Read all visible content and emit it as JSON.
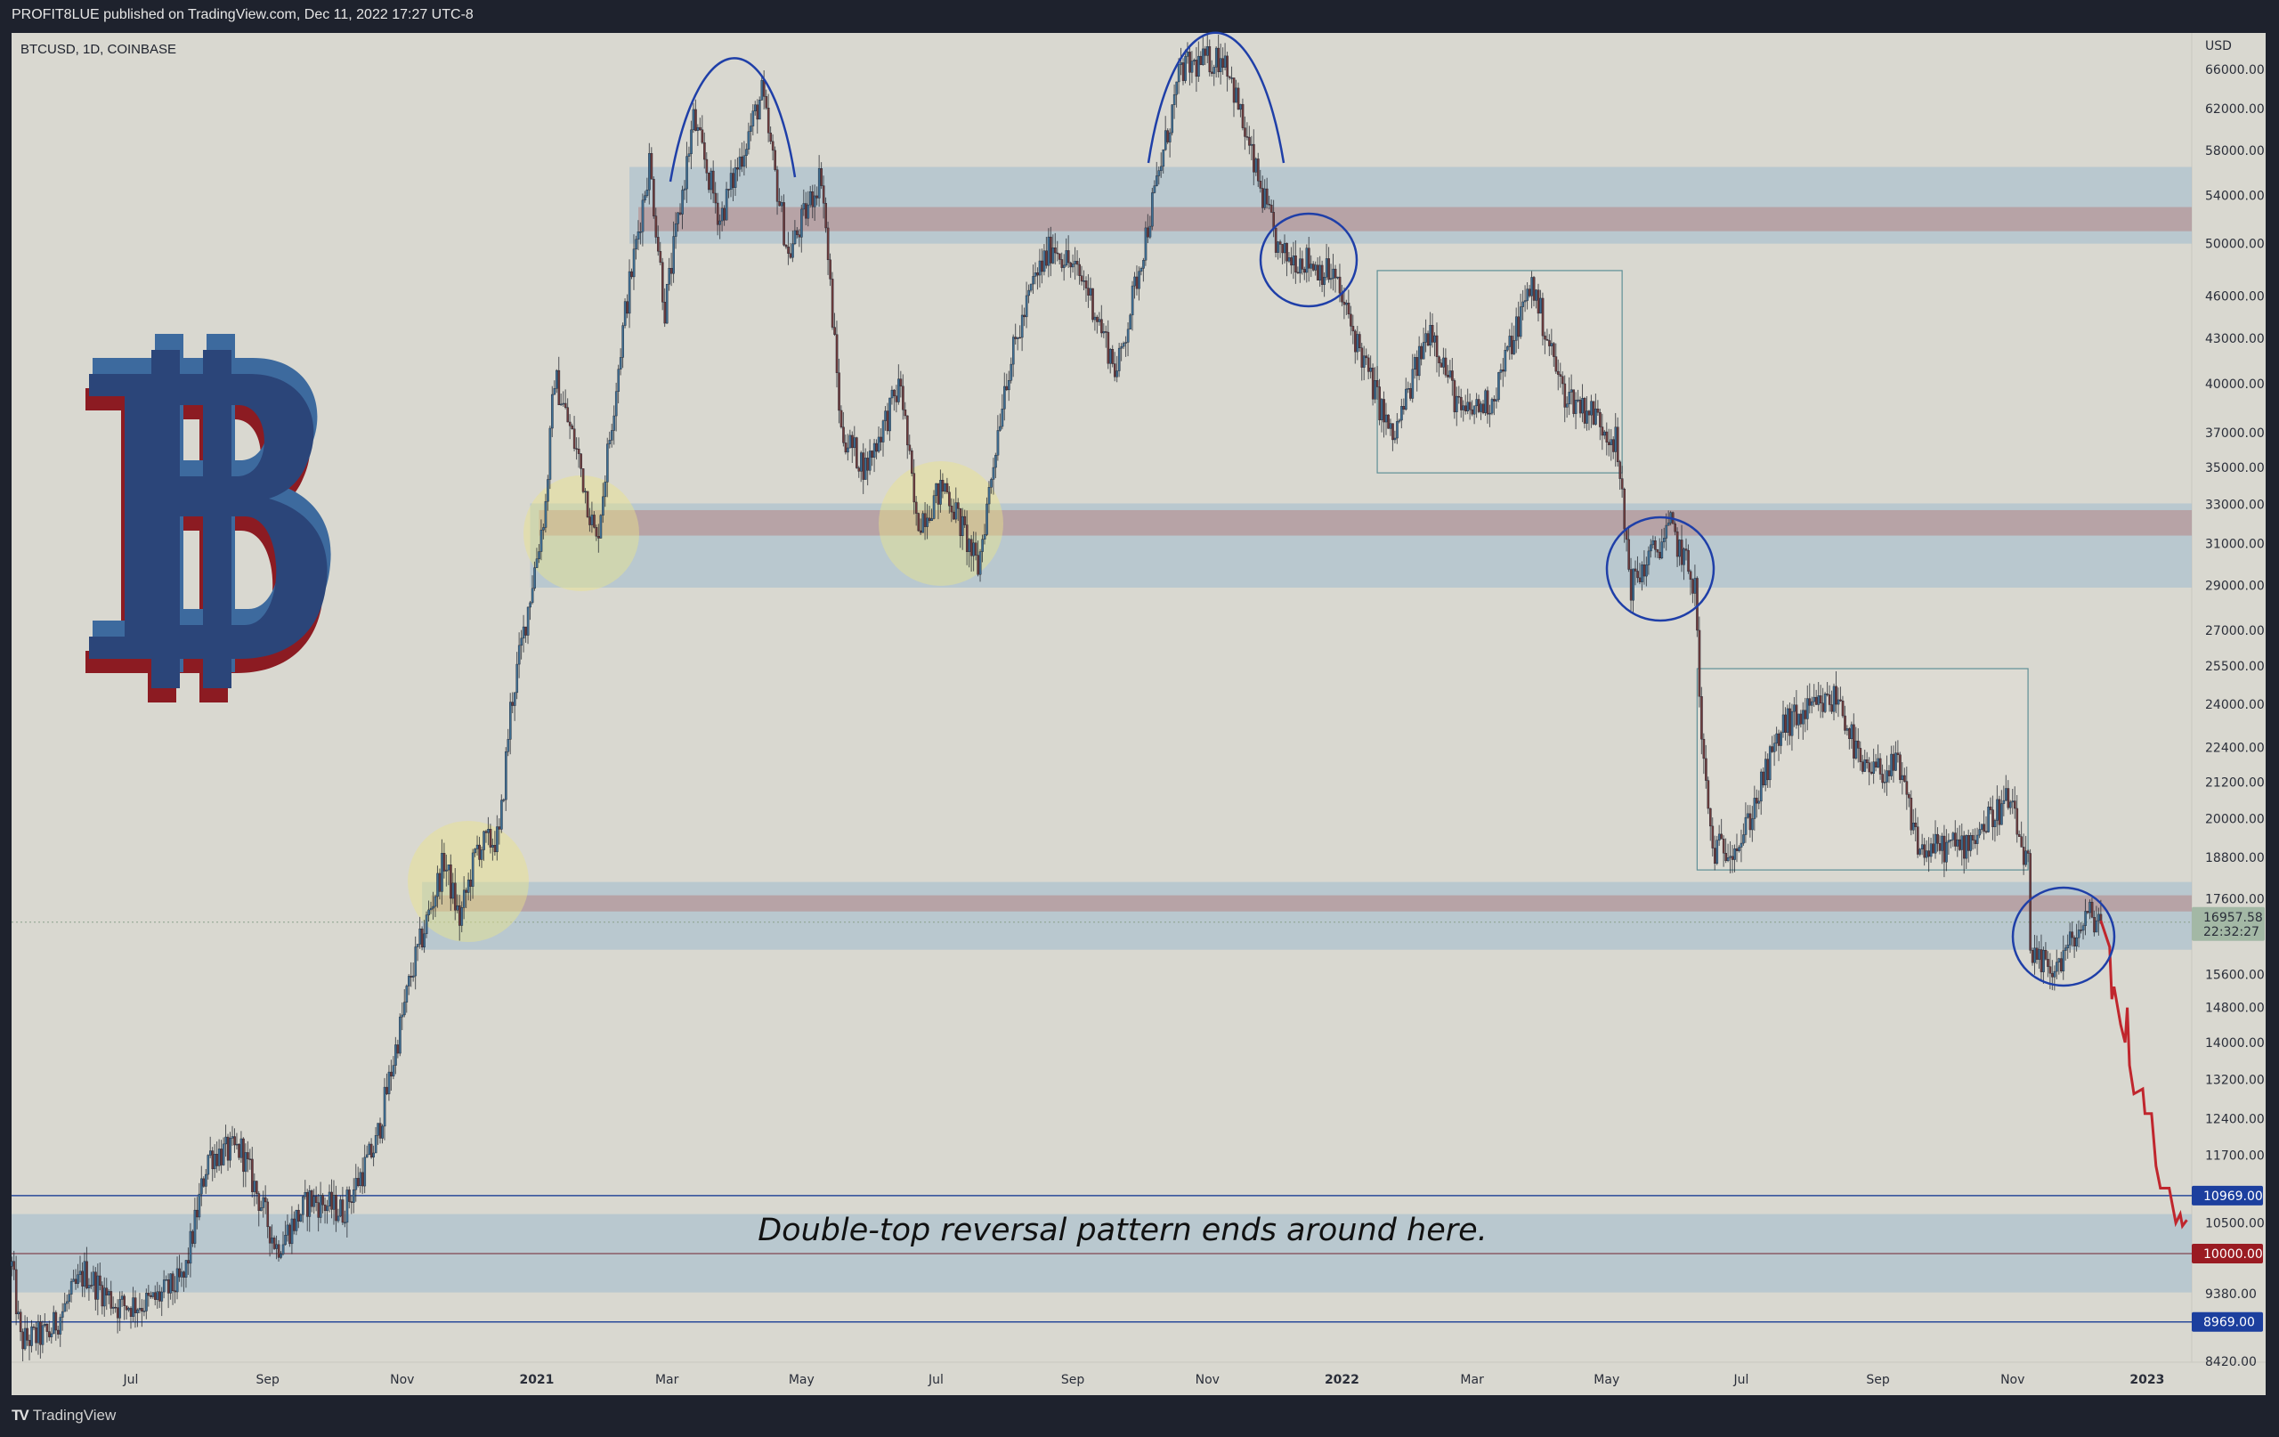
{
  "header": {
    "published": "PROFIT8LUE published on TradingView.com, Dec 11, 2022 17:27 UTC-8"
  },
  "symbol": {
    "label": "BTCUSD, 1D, COINBASE"
  },
  "footer": {
    "brand": "TradingView",
    "logo": "TV"
  },
  "logo": {
    "text": "B",
    "colors": {
      "front": "#2b4579",
      "blue_shadow": "#3d6a9e",
      "red_shadow": "#8c1b22"
    }
  },
  "annotation_text": "Double-top reversal pattern ends around here.",
  "colors": {
    "background": "#d9d8d0",
    "frame": "#1e222d",
    "up": "#3f6f93",
    "down": "#6e3c3c",
    "wick": "#22252e",
    "zone_blue": "#9fbccd",
    "zone_red": "#b58a8a",
    "projection": "#c0262d",
    "circle": "#1f3fa8",
    "yellow": "#ece48a"
  },
  "chart_data": {
    "type": "candlestick",
    "title": "BTCUSD, 1D, COINBASE",
    "yunit": "USD",
    "yscale": "log",
    "ylim": [
      8300,
      68000
    ],
    "xlim": [
      "2020-05-08",
      "2023-01-22"
    ],
    "grid": false,
    "x_ticks": [
      {
        "label": "Jul",
        "date": "2020-07-01"
      },
      {
        "label": "Sep",
        "date": "2020-09-01"
      },
      {
        "label": "Nov",
        "date": "2020-11-01"
      },
      {
        "label": "2021",
        "date": "2021-01-01"
      },
      {
        "label": "Mar",
        "date": "2021-03-01"
      },
      {
        "label": "May",
        "date": "2021-05-01"
      },
      {
        "label": "Jul",
        "date": "2021-07-01"
      },
      {
        "label": "Sep",
        "date": "2021-09-01"
      },
      {
        "label": "Nov",
        "date": "2021-11-01"
      },
      {
        "label": "2022",
        "date": "2022-01-01"
      },
      {
        "label": "Mar",
        "date": "2022-03-01"
      },
      {
        "label": "May",
        "date": "2022-05-01"
      },
      {
        "label": "Jul",
        "date": "2022-07-01"
      },
      {
        "label": "Sep",
        "date": "2022-09-01"
      },
      {
        "label": "Nov",
        "date": "2022-11-01"
      },
      {
        "label": "2023",
        "date": "2023-01-01"
      }
    ],
    "y_ticks": [
      "66000.00",
      "62000.00",
      "58000.00",
      "54000.00",
      "50000.00",
      "46000.00",
      "43000.00",
      "40000.00",
      "37000.00",
      "35000.00",
      "33000.00",
      "31000.00",
      "29000.00",
      "27000.00",
      "25500.00",
      "24000.00",
      "22400.00",
      "21200.00",
      "20000.00",
      "18800.00",
      "17600.00",
      "15600.00",
      "14800.00",
      "14000.00",
      "13200.00",
      "12400.00",
      "11700.00",
      "10500.00",
      "9380.00",
      "8420.00"
    ],
    "price_badges": [
      {
        "label": "16957.58",
        "sub": "22:32:27",
        "price": 16957.58,
        "color": "#a3b8a5",
        "text_color": "#2a2e39"
      },
      {
        "label": "10969.00",
        "price": 10969,
        "color": "#1c3f9e",
        "text_color": "#ffffff"
      },
      {
        "label": "10000.00",
        "price": 10000,
        "color": "#9a1b22",
        "text_color": "#ffffff"
      },
      {
        "label": "8969.00",
        "price": 8969,
        "color": "#1c3f9e",
        "text_color": "#ffffff"
      }
    ],
    "close_keypoints": [
      [
        "2020-05-08",
        9800
      ],
      [
        "2020-05-12",
        8700
      ],
      [
        "2020-05-25",
        8800
      ],
      [
        "2020-06-10",
        9700
      ],
      [
        "2020-06-25",
        9200
      ],
      [
        "2020-07-10",
        9250
      ],
      [
        "2020-07-25",
        9600
      ],
      [
        "2020-08-05",
        11700
      ],
      [
        "2020-08-20",
        11800
      ],
      [
        "2020-09-05",
        10100
      ],
      [
        "2020-09-20",
        10900
      ],
      [
        "2020-10-05",
        10700
      ],
      [
        "2020-10-20",
        11900
      ],
      [
        "2020-11-05",
        15600
      ],
      [
        "2020-11-20",
        18700
      ],
      [
        "2020-11-27",
        17000
      ],
      [
        "2020-12-05",
        19100
      ],
      [
        "2020-12-15",
        19400
      ],
      [
        "2020-12-20",
        23800
      ],
      [
        "2021-01-05",
        33000
      ],
      [
        "2021-01-09",
        40500
      ],
      [
        "2021-01-20",
        35500
      ],
      [
        "2021-01-28",
        31000
      ],
      [
        "2021-02-10",
        44800
      ],
      [
        "2021-02-21",
        57000
      ],
      [
        "2021-02-28",
        45000
      ],
      [
        "2021-03-13",
        61000
      ],
      [
        "2021-03-25",
        52000
      ],
      [
        "2021-04-13",
        63500
      ],
      [
        "2021-04-25",
        49000
      ],
      [
        "2021-05-10",
        56000
      ],
      [
        "2021-05-19",
        37000
      ],
      [
        "2021-05-30",
        35000
      ],
      [
        "2021-06-15",
        40000
      ],
      [
        "2021-06-22",
        32000
      ],
      [
        "2021-07-05",
        34000
      ],
      [
        "2021-07-20",
        29800
      ],
      [
        "2021-08-01",
        40000
      ],
      [
        "2021-08-14",
        47000
      ],
      [
        "2021-08-23",
        50000
      ],
      [
        "2021-09-07",
        46800
      ],
      [
        "2021-09-21",
        40700
      ],
      [
        "2021-10-05",
        51500
      ],
      [
        "2021-10-20",
        66000
      ],
      [
        "2021-11-09",
        67500
      ],
      [
        "2021-11-20",
        58000
      ],
      [
        "2021-12-04",
        49000
      ],
      [
        "2021-12-15",
        48800
      ],
      [
        "2021-12-28",
        47500
      ],
      [
        "2022-01-10",
        41800
      ],
      [
        "2022-01-24",
        36500
      ],
      [
        "2022-02-10",
        44000
      ],
      [
        "2022-02-24",
        38000
      ],
      [
        "2022-03-10",
        39000
      ],
      [
        "2022-03-28",
        47000
      ],
      [
        "2022-04-11",
        39500
      ],
      [
        "2022-04-26",
        38000
      ],
      [
        "2022-05-05",
        36500
      ],
      [
        "2022-05-12",
        29000
      ],
      [
        "2022-05-30",
        31800
      ],
      [
        "2022-06-10",
        29000
      ],
      [
        "2022-06-13",
        22500
      ],
      [
        "2022-06-18",
        19000
      ],
      [
        "2022-07-01",
        19300
      ],
      [
        "2022-07-20",
        23200
      ],
      [
        "2022-08-14",
        24300
      ],
      [
        "2022-08-25",
        21500
      ],
      [
        "2022-09-10",
        21700
      ],
      [
        "2022-09-20",
        19000
      ],
      [
        "2022-10-10",
        19200
      ],
      [
        "2022-10-30",
        20600
      ],
      [
        "2022-11-08",
        18500
      ],
      [
        "2022-11-09",
        15900
      ],
      [
        "2022-11-21",
        15800
      ],
      [
        "2022-12-05",
        17100
      ],
      [
        "2022-12-11",
        17100
      ]
    ],
    "projection": {
      "color": "#c0262d",
      "points": [
        [
          "2022-12-11",
          17000
        ],
        [
          "2022-12-15",
          16300
        ],
        [
          "2022-12-16",
          15000
        ],
        [
          "2022-12-17",
          15300
        ],
        [
          "2022-12-20",
          14400
        ],
        [
          "2022-12-22",
          14000
        ],
        [
          "2022-12-23",
          14800
        ],
        [
          "2022-12-24",
          13500
        ],
        [
          "2022-12-26",
          12900
        ],
        [
          "2022-12-30",
          13000
        ],
        [
          "2022-12-31",
          12500
        ],
        [
          "2023-01-03",
          12500
        ],
        [
          "2023-01-05",
          11500
        ],
        [
          "2023-01-07",
          11100
        ],
        [
          "2023-01-11",
          11100
        ],
        [
          "2023-01-14",
          10500
        ],
        [
          "2023-01-16",
          10650
        ],
        [
          "2023-01-17",
          10450
        ],
        [
          "2023-01-19",
          10550
        ]
      ]
    },
    "zones": [
      {
        "from": "2021-02-12",
        "blue": [
          50000,
          56500
        ],
        "red": [
          51000,
          53000
        ]
      },
      {
        "from": "2020-12-29",
        "blue": [
          28900,
          33050
        ],
        "red": [
          31400,
          32700
        ]
      },
      {
        "from": "2020-11-10",
        "blue": [
          16230,
          18080
        ],
        "red": [
          17250,
          17700
        ]
      },
      {
        "from": "2020-05-08",
        "blue": [
          9400,
          10650
        ]
      }
    ],
    "range_boxes": [
      {
        "from": "2022-01-17",
        "to": "2022-05-08",
        "low": 34700,
        "high": 47900
      },
      {
        "from": "2022-06-11",
        "to": "2022-11-08",
        "low": 18430,
        "high": 25400
      }
    ],
    "horizontal_lines": [
      {
        "price": 10969,
        "color": "#2a4a9a"
      },
      {
        "price": 10000,
        "color": "#8a5a66"
      },
      {
        "price": 8969,
        "color": "#2a4a9a"
      }
    ]
  }
}
